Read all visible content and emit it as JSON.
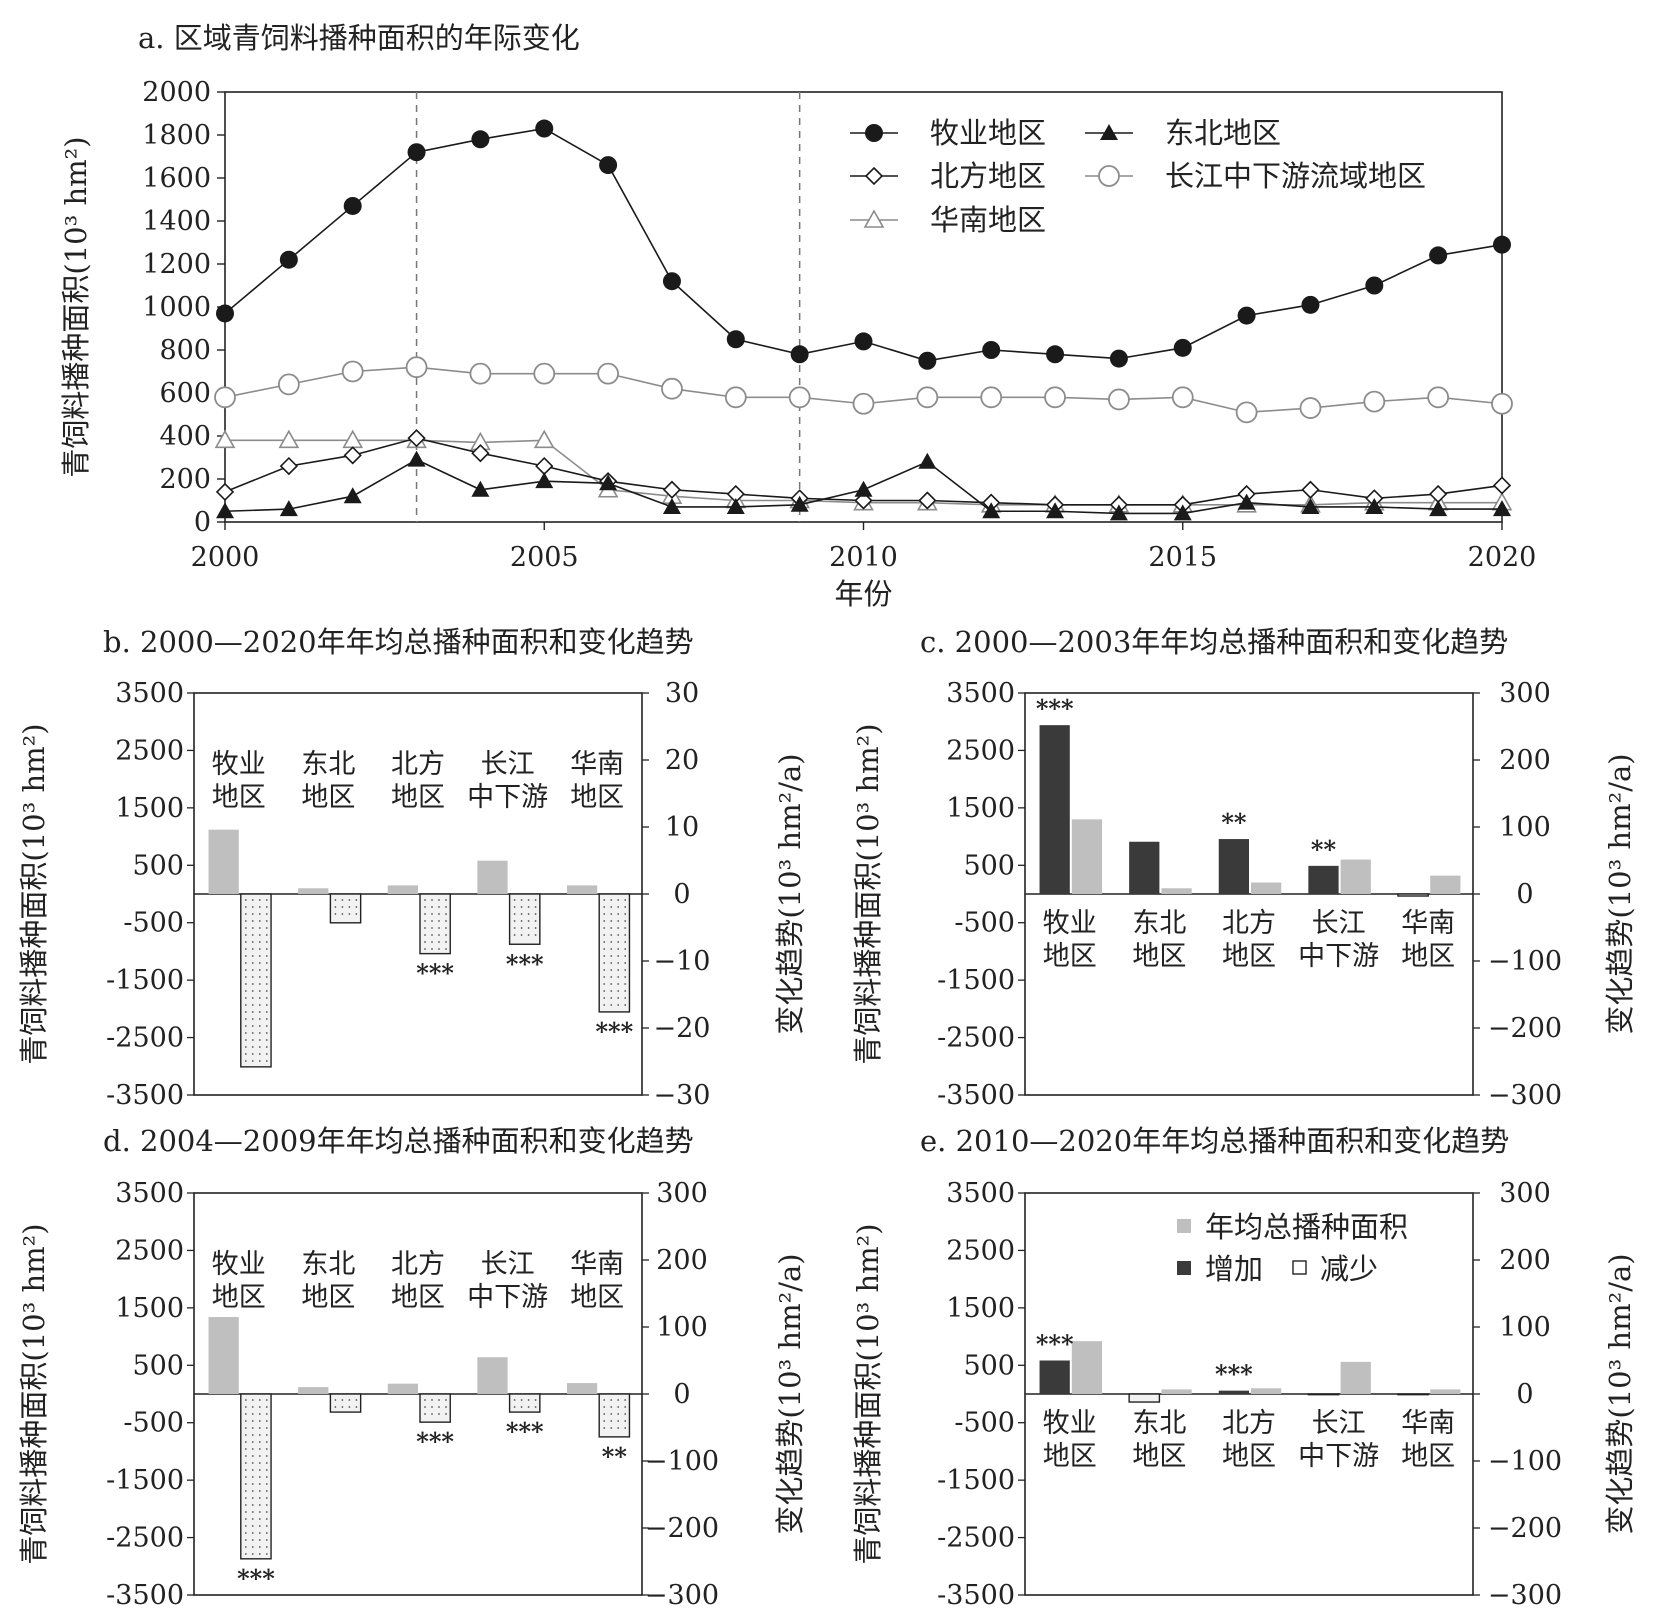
{
  "chart_data": [
    {
      "id": "a",
      "type": "line",
      "title": "a. 区域青饲料播种面积的年际变化",
      "xlabel": "年份",
      "ylabel": "青饲料播种面积(10³ hm²)",
      "xlim": [
        2000,
        2020
      ],
      "ylim": [
        0,
        2000
      ],
      "xticks": [
        "2000",
        "2005",
        "2010",
        "2015",
        "2020"
      ],
      "yticks": [
        "0",
        "200",
        "400",
        "600",
        "800",
        "1000",
        "1200",
        "1400",
        "1600",
        "1800",
        "2000"
      ],
      "vlines": [
        2003,
        2009
      ],
      "x": [
        2000,
        2001,
        2002,
        2003,
        2004,
        2005,
        2006,
        2007,
        2008,
        2009,
        2010,
        2011,
        2012,
        2013,
        2014,
        2015,
        2016,
        2017,
        2018,
        2019,
        2020
      ],
      "series": [
        {
          "name": "牧业地区",
          "marker": "filled-circle",
          "values": [
            970,
            1220,
            1470,
            1720,
            1780,
            1830,
            1660,
            1120,
            850,
            780,
            840,
            750,
            800,
            780,
            760,
            810,
            960,
            1010,
            1100,
            1240,
            1290
          ]
        },
        {
          "name": "东北地区",
          "marker": "filled-triangle",
          "values": [
            50,
            60,
            120,
            290,
            150,
            190,
            180,
            70,
            70,
            80,
            150,
            280,
            50,
            50,
            40,
            40,
            90,
            70,
            70,
            60,
            60
          ]
        },
        {
          "name": "北方地区",
          "marker": "open-diamond",
          "values": [
            140,
            260,
            310,
            390,
            320,
            260,
            190,
            150,
            130,
            110,
            100,
            100,
            90,
            80,
            80,
            80,
            130,
            150,
            110,
            130,
            170
          ]
        },
        {
          "name": "长江中下游流域地区",
          "marker": "open-circle",
          "values": [
            580,
            640,
            700,
            720,
            690,
            690,
            690,
            620,
            580,
            580,
            550,
            580,
            580,
            580,
            570,
            580,
            510,
            530,
            560,
            580,
            550
          ]
        },
        {
          "name": "华南地区",
          "marker": "open-triangle",
          "values": [
            380,
            380,
            380,
            380,
            370,
            380,
            150,
            120,
            100,
            100,
            90,
            90,
            80,
            80,
            80,
            80,
            80,
            80,
            90,
            90,
            90
          ]
        }
      ],
      "legend": "top-right"
    },
    {
      "id": "b",
      "type": "bar",
      "title": "b. 2000—2020年年均总播种面积和变化趋势",
      "ylabel_left": "青饲料播种面积(10³ hm²)",
      "ylabel_right": "变化趋势(10³ hm²/a)",
      "ylim_left": [
        -3500,
        3500
      ],
      "ylim_right": [
        -30,
        30
      ],
      "yticks_left": [
        "3500",
        "2500",
        "1500",
        "500",
        "-500",
        "-1500",
        "-2500",
        "-3500"
      ],
      "yticks_right": [
        "30",
        "20",
        "10",
        "0",
        "−10",
        "−20",
        "−30"
      ],
      "categories": [
        [
          "牧业",
          "地区"
        ],
        [
          "东北",
          "地区"
        ],
        [
          "北方",
          "地区"
        ],
        [
          "长江",
          "中下游"
        ],
        [
          "华南",
          "地区"
        ]
      ],
      "category_labels_position": "top",
      "area_values": [
        1120,
        100,
        150,
        580,
        150
      ],
      "trend_values": [
        -25.8,
        -4.3,
        -8.9,
        -7.5,
        -17.6
      ],
      "significance": [
        "",
        "",
        "***",
        "***",
        "***"
      ]
    },
    {
      "id": "c",
      "type": "bar",
      "title": "c. 2000—2003年年均总播种面积和变化趋势",
      "ylabel_left": "青饲料播种面积(10³ hm²)",
      "ylabel_right": "变化趋势(10³ hm²/a)",
      "ylim_left": [
        -3500,
        3500
      ],
      "ylim_right": [
        -300,
        300
      ],
      "yticks_left": [
        "3500",
        "2500",
        "1500",
        "500",
        "-500",
        "-1500",
        "-2500",
        "-3500"
      ],
      "yticks_right": [
        "300",
        "200",
        "100",
        "0",
        "−100",
        "−200",
        "−300"
      ],
      "categories": [
        [
          "牧业",
          "地区"
        ],
        [
          "东北",
          "地区"
        ],
        [
          "北方",
          "地区"
        ],
        [
          "长江",
          "中下游"
        ],
        [
          "华南",
          "地区"
        ]
      ],
      "category_labels_position": "bottom",
      "area_values": [
        1300,
        100,
        200,
        600,
        320
      ],
      "trend_values": [
        252,
        78,
        82,
        42,
        -3
      ],
      "significance": [
        "***",
        "",
        "**",
        "**",
        ""
      ]
    },
    {
      "id": "d",
      "type": "bar",
      "title": "d. 2004—2009年年均总播种面积和变化趋势",
      "ylabel_left": "青饲料播种面积(10³ hm²)",
      "ylabel_right": "变化趋势(10³ hm²/a)",
      "ylim_left": [
        -3500,
        3500
      ],
      "ylim_right": [
        -300,
        300
      ],
      "yticks_left": [
        "3500",
        "2500",
        "1500",
        "500",
        "-500",
        "-1500",
        "-2500",
        "-3500"
      ],
      "yticks_right": [
        "300",
        "200",
        "100",
        "0",
        "−100",
        "−200",
        "−300"
      ],
      "categories": [
        [
          "牧业",
          "地区"
        ],
        [
          "东北",
          "地区"
        ],
        [
          "北方",
          "地区"
        ],
        [
          "长江",
          "中下游"
        ],
        [
          "华南",
          "地区"
        ]
      ],
      "category_labels_position": "top",
      "area_values": [
        1340,
        120,
        180,
        640,
        190
      ],
      "trend_values": [
        -246,
        -27,
        -42,
        -27,
        -64
      ],
      "significance": [
        "***",
        "",
        "***",
        "***",
        "**"
      ]
    },
    {
      "id": "e",
      "type": "bar",
      "title": "e. 2010—2020年年均总播种面积和变化趋势",
      "ylabel_left": "青饲料播种面积(10³ hm²)",
      "ylabel_right": "变化趋势(10³ hm²/a)",
      "ylim_left": [
        -3500,
        3500
      ],
      "ylim_right": [
        -300,
        300
      ],
      "yticks_left": [
        "3500",
        "2500",
        "1500",
        "500",
        "-500",
        "-1500",
        "-2500",
        "-3500"
      ],
      "yticks_right": [
        "300",
        "200",
        "100",
        "0",
        "−100",
        "−200",
        "−300"
      ],
      "categories": [
        [
          "牧业",
          "地区"
        ],
        [
          "东北",
          "地区"
        ],
        [
          "北方",
          "地区"
        ],
        [
          "长江",
          "中下游"
        ],
        [
          "华南",
          "地区"
        ]
      ],
      "category_labels_position": "bottom",
      "area_values": [
        920,
        80,
        100,
        560,
        80
      ],
      "trend_values": [
        50,
        -12,
        5,
        -1,
        -1
      ],
      "significance": [
        "***",
        "",
        "***",
        "",
        ""
      ],
      "legend": {
        "area": "年均总播种面积",
        "increase": "增加",
        "decrease": "减少"
      }
    }
  ],
  "colors": {
    "line": "#1a1a1a",
    "grey_line": "#8c8c8c",
    "area_bar": "#bfbfbf",
    "increase_bar": "#3a3a3a",
    "decrease_bar_fill": "#f2f2f2",
    "axis": "#222222"
  }
}
